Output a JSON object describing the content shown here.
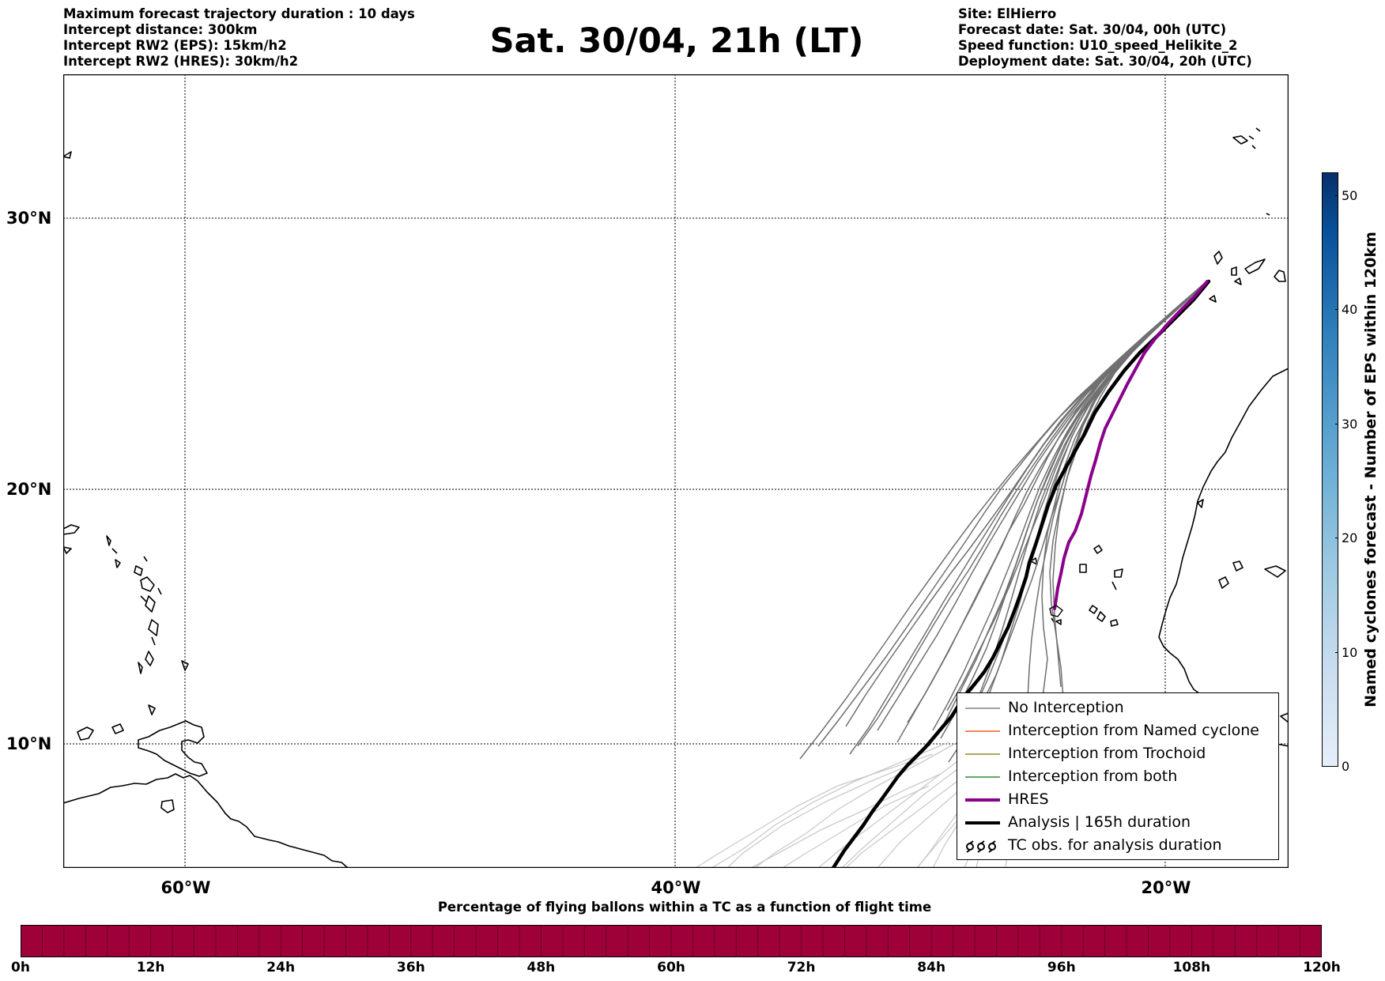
{
  "header": {
    "title": "Sat. 30/04, 21h (LT)",
    "left_lines": [
      "Maximum forecast trajectory duration : 10 days",
      "Intercept distance: 300km",
      "Intercept RW2 (EPS):  15km/h2",
      "Intercept RW2 (HRES): 30km/h2"
    ],
    "right_lines": [
      "Site: ElHierro",
      "Forecast date: Sat. 30/04, 00h (UTC)",
      "Speed function: U10_speed_Helikite_2",
      "Deployment date: Sat. 30/04, 20h (UTC)"
    ]
  },
  "map": {
    "lat_labels": [
      "30°N",
      "20°N",
      "10°N"
    ],
    "lon_labels": [
      "60°W",
      "40°W",
      "20°W"
    ],
    "colors": {
      "eps_dark": "#707070",
      "eps_light": "#c8c8c8",
      "hres": "#8b008b",
      "analysis": "#000000",
      "coastline": "#000000"
    }
  },
  "legend": {
    "items": [
      {
        "label": "No Interception",
        "color": "#808080",
        "symbol": "line"
      },
      {
        "label": "Interception from Named cyclone",
        "color": "#e8602c",
        "symbol": "line"
      },
      {
        "label": "Interception from Trochoid",
        "color": "#8b8b2a",
        "symbol": "line"
      },
      {
        "label": "Interception from both",
        "color": "#2e8b2e",
        "symbol": "line"
      },
      {
        "label": "HRES",
        "color": "#8b008b",
        "symbol": "thick-line"
      },
      {
        "label": "Analysis | 165h duration",
        "color": "#000000",
        "symbol": "thick-line"
      },
      {
        "label": "TC obs. for analysis duration",
        "color": "#000000",
        "symbol": "cyclone-icons"
      }
    ]
  },
  "colorbar_vertical": {
    "label": "Named cyclones forecast - Number of EPS within 120km",
    "ticks": [
      "0",
      "10",
      "20",
      "30",
      "40",
      "50"
    ],
    "max": 52
  },
  "colorbar_horizontal": {
    "title": "Percentage of flying ballons within a TC as a function of flight time",
    "ticks": [
      "0h",
      "12h",
      "24h",
      "36h",
      "48h",
      "60h",
      "72h",
      "84h",
      "96h",
      "108h",
      "120h"
    ],
    "fill_color": "#9e0038"
  }
}
